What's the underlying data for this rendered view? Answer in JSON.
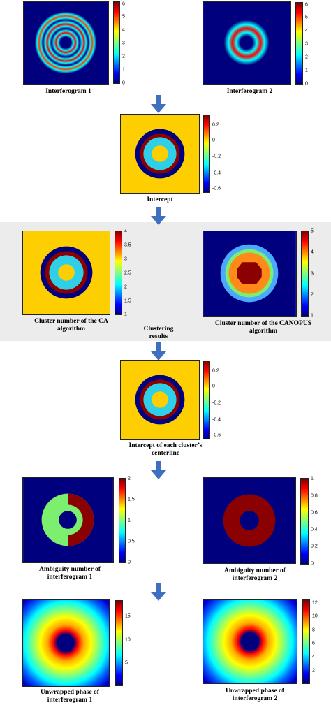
{
  "colors": {
    "bg_blue": "#00007f",
    "yellow": "#fecf00",
    "cyan": "#2fcfe8",
    "dark_red": "#8b0000",
    "green": "#7cef6f",
    "orange": "#ff8a1a",
    "light_blue": "#4aa8ff",
    "arrow": "#3f6fc0",
    "band": "#ececec"
  },
  "panels": {
    "interferogram1": {
      "caption": "Interferogram 1",
      "ticks": [
        "6",
        "5",
        "4",
        "3",
        "2",
        "1",
        "0"
      ]
    },
    "interferogram2": {
      "caption": "Interferogram 2",
      "ticks": [
        "6",
        "5",
        "4",
        "3",
        "2",
        "1",
        "0"
      ]
    },
    "intercept": {
      "caption": "Intercept",
      "ticks": [
        "0.2",
        "0",
        "-0.2",
        "-0.4",
        "-0.6"
      ]
    },
    "cluster_ca": {
      "caption_line1": "Cluster number of the CA",
      "caption_line2": "algorithm",
      "ticks": [
        "4",
        "3.5",
        "3",
        "2.5",
        "2",
        "1.5",
        "1"
      ]
    },
    "cluster_canopus": {
      "caption_line1": "Cluster number of the CANOPUS",
      "caption_line2": "algorithm",
      "ticks": [
        "5",
        "4",
        "3",
        "2",
        "1"
      ]
    },
    "clustering_label": {
      "line1": "Clustering",
      "line2": "results"
    },
    "intercept_centerline": {
      "caption_line1": "Intercept of each cluster’s",
      "caption_line2": "centerline",
      "ticks": [
        "0.2",
        "0",
        "-0.2",
        "-0.4",
        "-0.6"
      ]
    },
    "ambiguity1": {
      "caption_line1": "Ambiguity number of",
      "caption_line2": "interferogram 1",
      "ticks": [
        "2",
        "1.5",
        "1",
        "0.5",
        "0"
      ]
    },
    "ambiguity2": {
      "caption_line1": "Ambiguity number of",
      "caption_line2": "interferogram 2",
      "ticks": [
        "1",
        "0.8",
        "0.6",
        "0.4",
        "0.2",
        "0"
      ]
    },
    "unwrapped1": {
      "caption_line1": "Unwrapped phase of",
      "caption_line2": "interferogram 1",
      "ticks": [
        "15",
        "10",
        "5"
      ]
    },
    "unwrapped2": {
      "caption_line1": "Unwrapped phase of",
      "caption_line2": "interferogram 2",
      "ticks": [
        "12",
        "10",
        "8",
        "6",
        "4",
        "2"
      ]
    }
  }
}
